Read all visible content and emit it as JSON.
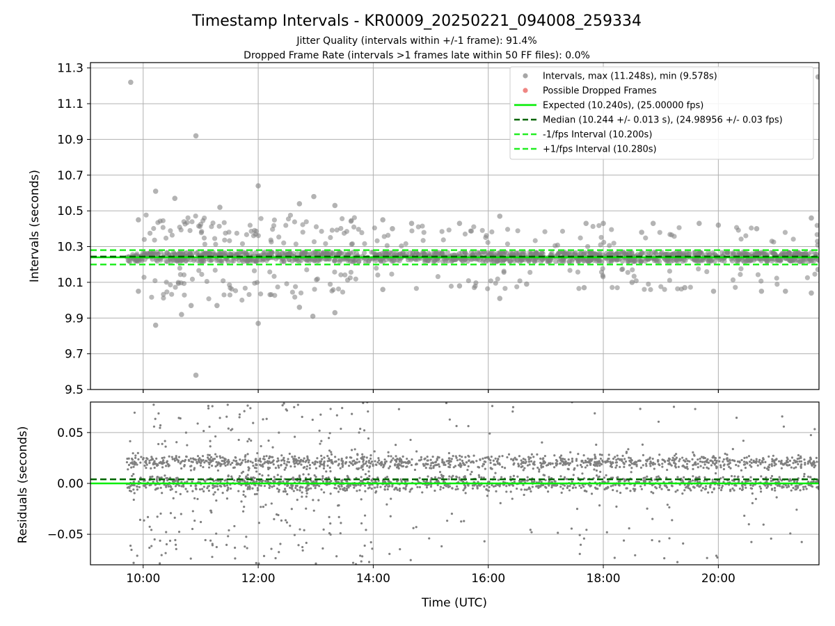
{
  "figure": {
    "title": "Timestamp Intervals - KR0009_20250221_094008_259334",
    "subtitle_1": "Jitter Quality (intervals within +/-1 frame): 91.4%",
    "subtitle_2": "Dropped Frame Rate (intervals >1 frames late within 50 FF files): 0.0%"
  },
  "colors": {
    "points": "#808080",
    "dropped": "#e8524f",
    "expected": "#00ee00",
    "median": "#006400",
    "fps_bounds": "#22ee22",
    "grid": "#b0b0b0"
  },
  "chart_data": [
    {
      "type": "scatter",
      "name": "intervals",
      "ylabel": "Intervals (seconds)",
      "xlabel": "",
      "x_axis": "Time (UTC)",
      "xlim": [
        "09:05",
        "21:45"
      ],
      "ylim": [
        9.5,
        11.33
      ],
      "yticks": [
        "9.5",
        "9.7",
        "9.9",
        "10.1",
        "10.3",
        "10.5",
        "10.7",
        "10.9",
        "11.1",
        "11.3"
      ],
      "xticks": [
        "10:00",
        "12:00",
        "14:00",
        "16:00",
        "18:00",
        "20:00"
      ],
      "grid": true,
      "legend_position": "top-right",
      "legend": [
        {
          "label": "Intervals, max (11.248s), min (9.578s)",
          "kind": "marker",
          "color": "#808080"
        },
        {
          "label": "Possible Dropped Frames",
          "kind": "marker",
          "color": "#e8524f"
        },
        {
          "label": "Expected (10.240s), (25.00000 fps)",
          "kind": "solid",
          "color": "#00ee00"
        },
        {
          "label": "Median (10.244 +/- 0.013 s), (24.98956 +/- 0.03 fps)",
          "kind": "dashed",
          "color": "#006400"
        },
        {
          "label": "-1/fps Interval (10.200s)",
          "kind": "dashed",
          "color": "#22ee22"
        },
        {
          "label": "+1/fps Interval (10.280s)",
          "kind": "dashed",
          "color": "#22ee22"
        }
      ],
      "expected": 10.24,
      "median": 10.244,
      "minus_interval": 10.2,
      "plus_interval": 10.28,
      "x_start": "09:43",
      "x_end": "21:45",
      "core_band": [
        10.215,
        10.27
      ],
      "outliers": [
        [
          "09:47",
          11.22
        ],
        [
          "10:55",
          10.92
        ],
        [
          "10:55",
          9.58
        ],
        [
          "12:00",
          10.64
        ],
        [
          "10:13",
          10.61
        ],
        [
          "10:13",
          9.86
        ],
        [
          "12:00",
          9.87
        ],
        [
          "12:58",
          10.58
        ],
        [
          "12:43",
          10.54
        ],
        [
          "09:55",
          10.45
        ],
        [
          "09:55",
          10.05
        ],
        [
          "11:20",
          10.52
        ],
        [
          "13:20",
          10.53
        ],
        [
          "12:57",
          9.91
        ],
        [
          "13:20",
          9.93
        ],
        [
          "10:33",
          10.57
        ],
        [
          "10:40",
          9.92
        ],
        [
          "11:17",
          9.97
        ],
        [
          "10:50",
          9.97
        ],
        [
          "12:43",
          9.96
        ],
        [
          "14:40",
          10.43
        ],
        [
          "15:30",
          10.43
        ],
        [
          "16:12",
          10.47
        ],
        [
          "16:12",
          10.01
        ],
        [
          "17:42",
          10.43
        ],
        [
          "18:00",
          10.43
        ],
        [
          "18:52",
          10.43
        ],
        [
          "19:40",
          10.43
        ],
        [
          "21:37",
          10.46
        ],
        [
          "21:37",
          10.04
        ],
        [
          "14:10",
          10.45
        ],
        [
          "14:20",
          10.4
        ],
        [
          "14:10",
          10.06
        ],
        [
          "15:30",
          10.08
        ],
        [
          "16:40",
          10.09
        ],
        [
          "17:40",
          10.07
        ],
        [
          "18:30",
          10.1
        ],
        [
          "19:25",
          10.07
        ],
        [
          "19:55",
          10.05
        ],
        [
          "20:45",
          10.05
        ],
        [
          "21:10",
          10.05
        ],
        [
          "21:44",
          11.25
        ],
        [
          "18:40",
          10.38
        ],
        [
          "20:00",
          10.42
        ],
        [
          "20:40",
          10.4
        ]
      ],
      "outlier_clusters": [
        {
          "from": "10:00",
          "to": "13:50",
          "low": [
            10.0,
            10.18
          ],
          "high": [
            10.31,
            10.48
          ],
          "count": 150
        },
        {
          "from": "13:50",
          "to": "21:45",
          "low": [
            10.05,
            10.18
          ],
          "high": [
            10.3,
            10.42
          ],
          "count": 120
        }
      ]
    },
    {
      "type": "scatter",
      "name": "residuals",
      "ylabel": "Residuals (seconds)",
      "xlabel": "Time (UTC)",
      "xlim": [
        "09:05",
        "21:45"
      ],
      "ylim": [
        -0.08,
        0.08
      ],
      "yticks": [
        "−0.05",
        "0.00",
        "0.05"
      ],
      "ytick_values": [
        -0.05,
        0.0,
        0.05
      ],
      "xticks": [
        "10:00",
        "12:00",
        "14:00",
        "16:00",
        "18:00",
        "20:00"
      ],
      "grid": true,
      "expected": 0.0,
      "median": 0.004,
      "bands": [
        {
          "center": 0.0,
          "spread": 0.008,
          "count": 1200
        },
        {
          "center": 0.021,
          "spread": 0.007,
          "count": 1100
        }
      ],
      "sparse": {
        "range": [
          -0.08,
          0.08
        ],
        "count": 380
      }
    }
  ]
}
